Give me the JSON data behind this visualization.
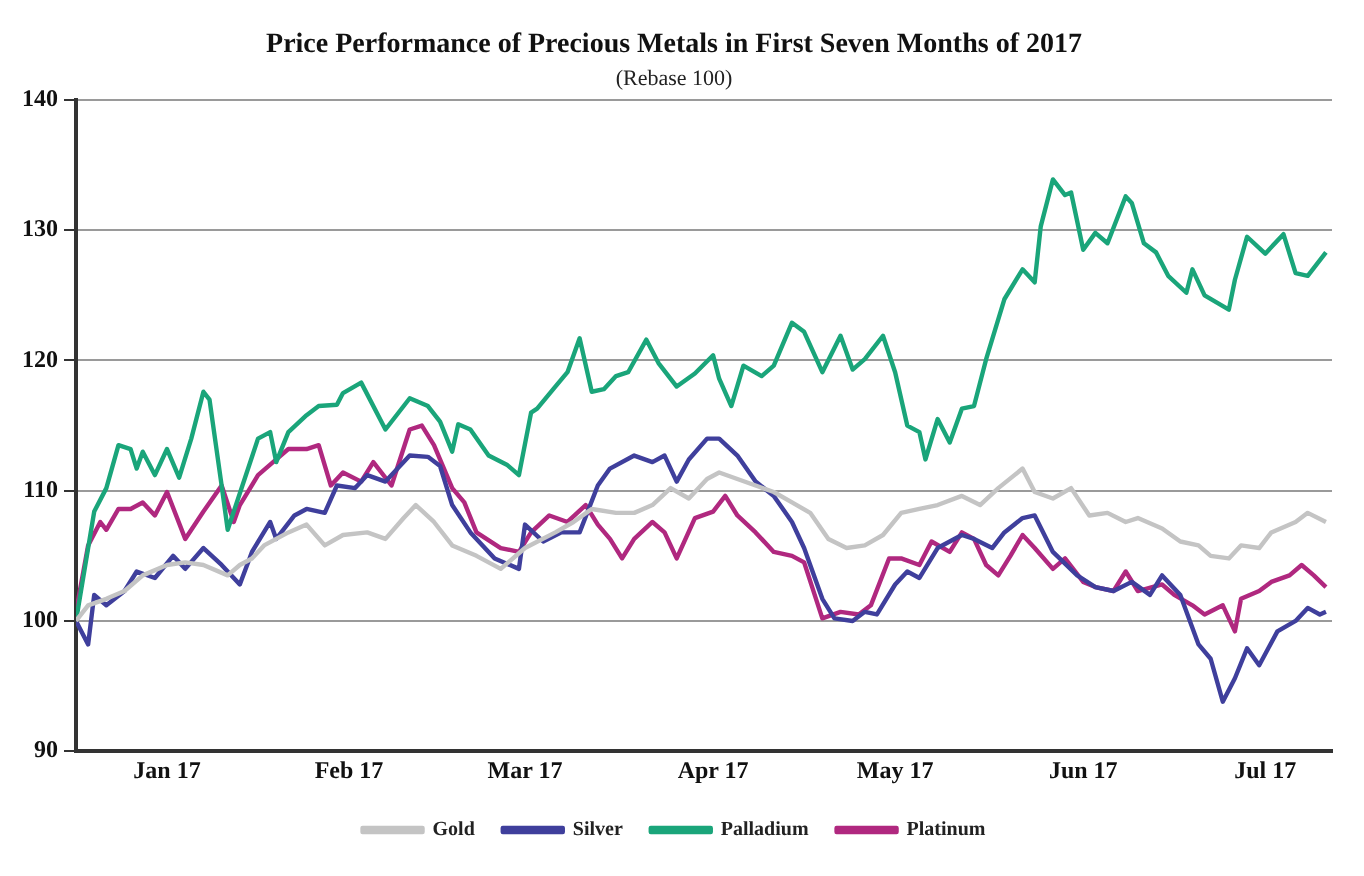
{
  "chart_data": {
    "type": "line",
    "title": "Price Performance of Precious Metals in First Seven Months of 2017",
    "subtitle": "(Rebase 100)",
    "xlim": [
      "2017-01-01",
      "2017-07-27"
    ],
    "xticks": [
      {
        "value": "2017-01-16",
        "label": "Jan 17"
      },
      {
        "value": "2017-02-15",
        "label": "Feb 17"
      },
      {
        "value": "2017-03-16",
        "label": "Mar 17"
      },
      {
        "value": "2017-04-16",
        "label": "Apr 17"
      },
      {
        "value": "2017-05-16",
        "label": "May 17"
      },
      {
        "value": "2017-06-16",
        "label": "Jun 17"
      },
      {
        "value": "2017-07-16",
        "label": "Jul 17"
      }
    ],
    "ylim": [
      90,
      140
    ],
    "yticks": [
      90,
      100,
      110,
      120,
      130,
      140
    ],
    "grid": "y",
    "legend": "bottom",
    "marker": "none",
    "line_style": "solid",
    "series": [
      {
        "name": "Gold",
        "color": "#c4c4c4",
        "x": [
          "2017-01-01",
          "2017-01-03",
          "2017-01-06",
          "2017-01-09",
          "2017-01-12",
          "2017-01-16",
          "2017-01-19",
          "2017-01-22",
          "2017-01-26",
          "2017-01-28",
          "2017-01-30",
          "2017-02-01",
          "2017-02-05",
          "2017-02-08",
          "2017-02-11",
          "2017-02-14",
          "2017-02-18",
          "2017-02-21",
          "2017-02-24",
          "2017-02-26",
          "2017-03-01",
          "2017-03-04",
          "2017-03-08",
          "2017-03-12",
          "2017-03-16",
          "2017-03-21",
          "2017-03-24",
          "2017-03-27",
          "2017-03-31",
          "2017-04-03",
          "2017-04-06",
          "2017-04-09",
          "2017-04-12",
          "2017-04-15",
          "2017-04-17",
          "2017-04-20",
          "2017-04-23",
          "2017-04-26",
          "2017-04-29",
          "2017-05-02",
          "2017-05-05",
          "2017-05-08",
          "2017-05-11",
          "2017-05-14",
          "2017-05-17",
          "2017-05-20",
          "2017-05-23",
          "2017-05-27",
          "2017-05-30",
          "2017-06-02",
          "2017-06-06",
          "2017-06-08",
          "2017-06-11",
          "2017-06-14",
          "2017-06-17",
          "2017-06-20",
          "2017-06-23",
          "2017-06-25",
          "2017-06-29",
          "2017-07-02",
          "2017-07-05",
          "2017-07-07",
          "2017-07-10",
          "2017-07-12",
          "2017-07-15",
          "2017-07-17",
          "2017-07-21",
          "2017-07-23",
          "2017-07-26"
        ],
        "values": [
          100,
          101.2,
          101.7,
          102.3,
          103.5,
          104.3,
          104.5,
          104.3,
          103.5,
          104.3,
          104.8,
          105.8,
          106.8,
          107.4,
          105.8,
          106.6,
          106.8,
          106.3,
          107.9,
          108.9,
          107.6,
          105.8,
          105,
          104,
          105.6,
          106.8,
          107.6,
          108.6,
          108.3,
          108.3,
          108.9,
          110.2,
          109.4,
          110.9,
          111.4,
          110.9,
          110.4,
          109.9,
          109.1,
          108.3,
          106.3,
          105.6,
          105.8,
          106.6,
          108.3,
          108.6,
          108.9,
          109.6,
          108.9,
          110.2,
          111.7,
          109.9,
          109.4,
          110.2,
          108.1,
          108.3,
          107.6,
          107.9,
          107.1,
          106.1,
          105.8,
          105,
          104.8,
          105.8,
          105.6,
          106.8,
          107.6,
          108.3,
          107.6
        ]
      },
      {
        "name": "Silver",
        "color": "#3f3f9c",
        "x": [
          "2017-01-01",
          "2017-01-03",
          "2017-01-04",
          "2017-01-06",
          "2017-01-09",
          "2017-01-11",
          "2017-01-14",
          "2017-01-17",
          "2017-01-19",
          "2017-01-22",
          "2017-01-25",
          "2017-01-28",
          "2017-01-30",
          "2017-02-02",
          "2017-02-03",
          "2017-02-06",
          "2017-02-08",
          "2017-02-11",
          "2017-02-13",
          "2017-02-16",
          "2017-02-18",
          "2017-02-21",
          "2017-02-25",
          "2017-02-28",
          "2017-03-02",
          "2017-03-04",
          "2017-03-07",
          "2017-03-11",
          "2017-03-15",
          "2017-03-16",
          "2017-03-19",
          "2017-03-22",
          "2017-03-25",
          "2017-03-28",
          "2017-03-30",
          "2017-04-03",
          "2017-04-06",
          "2017-04-08",
          "2017-04-10",
          "2017-04-12",
          "2017-04-15",
          "2017-04-17",
          "2017-04-20",
          "2017-04-23",
          "2017-04-26",
          "2017-04-29",
          "2017-05-01",
          "2017-05-04",
          "2017-05-06",
          "2017-05-09",
          "2017-05-11",
          "2017-05-13",
          "2017-05-16",
          "2017-05-18",
          "2017-05-20",
          "2017-05-23",
          "2017-05-27",
          "2017-05-29",
          "2017-06-01",
          "2017-06-03",
          "2017-06-06",
          "2017-06-08",
          "2017-06-11",
          "2017-06-15",
          "2017-06-18",
          "2017-06-21",
          "2017-06-24",
          "2017-06-27",
          "2017-06-29",
          "2017-07-02",
          "2017-07-05",
          "2017-07-07",
          "2017-07-09",
          "2017-07-11",
          "2017-07-13",
          "2017-07-15",
          "2017-07-18",
          "2017-07-21",
          "2017-07-23",
          "2017-07-25",
          "2017-07-26"
        ],
        "values": [
          100,
          98.2,
          102,
          101.2,
          102.3,
          103.8,
          103.3,
          105,
          104,
          105.6,
          104.3,
          102.8,
          105.3,
          107.6,
          106.3,
          108.1,
          108.6,
          108.3,
          110.4,
          110.2,
          111.2,
          110.7,
          112.7,
          112.6,
          111.9,
          108.9,
          106.8,
          104.8,
          104,
          107.4,
          106.1,
          106.8,
          106.8,
          110.4,
          111.7,
          112.7,
          112.2,
          112.7,
          110.7,
          112.4,
          114,
          114,
          112.7,
          110.7,
          109.6,
          107.6,
          105.6,
          101.7,
          100.2,
          100,
          100.7,
          100.5,
          102.8,
          103.8,
          103.3,
          105.6,
          106.6,
          106.3,
          105.6,
          106.8,
          107.9,
          108.1,
          105.3,
          103.5,
          102.6,
          102.3,
          103,
          102,
          103.5,
          102,
          98.2,
          97.1,
          93.8,
          95.6,
          97.9,
          96.6,
          99.2,
          100,
          101,
          100.5,
          100.7
        ]
      },
      {
        "name": "Palladium",
        "color": "#1aa57a",
        "x": [
          "2017-01-01",
          "2017-01-04",
          "2017-01-06",
          "2017-01-08",
          "2017-01-10",
          "2017-01-11",
          "2017-01-12",
          "2017-01-14",
          "2017-01-16",
          "2017-01-18",
          "2017-01-20",
          "2017-01-22",
          "2017-01-23",
          "2017-01-25",
          "2017-01-26",
          "2017-01-27",
          "2017-01-31",
          "2017-02-02",
          "2017-02-03",
          "2017-02-05",
          "2017-02-08",
          "2017-02-10",
          "2017-02-13",
          "2017-02-14",
          "2017-02-17",
          "2017-02-21",
          "2017-02-25",
          "2017-02-28",
          "2017-03-02",
          "2017-03-04",
          "2017-03-05",
          "2017-03-07",
          "2017-03-10",
          "2017-03-13",
          "2017-03-15",
          "2017-03-17",
          "2017-03-18",
          "2017-03-21",
          "2017-03-23",
          "2017-03-25",
          "2017-03-27",
          "2017-03-29",
          "2017-03-31",
          "2017-04-02",
          "2017-04-05",
          "2017-04-07",
          "2017-04-10",
          "2017-04-13",
          "2017-04-16",
          "2017-04-17",
          "2017-04-19",
          "2017-04-21",
          "2017-04-24",
          "2017-04-26",
          "2017-04-29",
          "2017-05-01",
          "2017-05-04",
          "2017-05-07",
          "2017-05-09",
          "2017-05-11",
          "2017-05-14",
          "2017-05-16",
          "2017-05-18",
          "2017-05-20",
          "2017-05-21",
          "2017-05-23",
          "2017-05-25",
          "2017-05-27",
          "2017-05-29",
          "2017-05-31",
          "2017-06-03",
          "2017-06-06",
          "2017-06-08",
          "2017-06-09",
          "2017-06-11",
          "2017-06-13",
          "2017-06-14",
          "2017-06-16",
          "2017-06-18",
          "2017-06-20",
          "2017-06-23",
          "2017-06-24",
          "2017-06-26",
          "2017-06-28",
          "2017-06-30",
          "2017-07-03",
          "2017-07-04",
          "2017-07-06",
          "2017-07-10",
          "2017-07-11",
          "2017-07-13",
          "2017-07-16",
          "2017-07-19",
          "2017-07-21",
          "2017-07-23",
          "2017-07-26"
        ],
        "values": [
          100,
          108.4,
          110.2,
          113.5,
          113.2,
          111.7,
          113,
          111.2,
          113.2,
          111,
          114,
          117.6,
          117,
          110.4,
          107,
          108.4,
          114,
          114.5,
          112.2,
          114.5,
          115.8,
          116.5,
          116.6,
          117.5,
          118.3,
          114.7,
          117.1,
          116.5,
          115.3,
          113,
          115.1,
          114.7,
          112.7,
          112,
          111.2,
          116,
          116.3,
          118,
          119.1,
          121.7,
          117.6,
          117.8,
          118.8,
          119.1,
          121.6,
          119.8,
          118,
          119,
          120.4,
          118.6,
          116.5,
          119.6,
          118.8,
          119.6,
          122.9,
          122.2,
          119.1,
          121.9,
          119.3,
          120.1,
          121.9,
          119.1,
          115,
          114.5,
          112.4,
          115.5,
          113.7,
          116.3,
          116.5,
          120.1,
          124.7,
          127,
          126,
          130.3,
          133.9,
          132.7,
          132.9,
          128.5,
          129.8,
          129,
          132.6,
          132.1,
          129,
          128.3,
          126.5,
          125.2,
          127,
          125,
          123.9,
          126.2,
          129.5,
          128.2,
          129.7,
          126.7,
          126.5,
          128.3
        ]
      },
      {
        "name": "Platinum",
        "color": "#b0287f",
        "x": [
          "2017-01-01",
          "2017-01-03",
          "2017-01-05",
          "2017-01-06",
          "2017-01-08",
          "2017-01-10",
          "2017-01-12",
          "2017-01-14",
          "2017-01-16",
          "2017-01-19",
          "2017-01-22",
          "2017-01-25",
          "2017-01-27",
          "2017-01-28",
          "2017-01-31",
          "2017-02-02",
          "2017-02-05",
          "2017-02-08",
          "2017-02-10",
          "2017-02-12",
          "2017-02-14",
          "2017-02-17",
          "2017-02-19",
          "2017-02-22",
          "2017-02-25",
          "2017-02-27",
          "2017-03-01",
          "2017-03-04",
          "2017-03-06",
          "2017-03-08",
          "2017-03-12",
          "2017-03-15",
          "2017-03-17",
          "2017-03-20",
          "2017-03-23",
          "2017-03-26",
          "2017-03-28",
          "2017-03-30",
          "2017-04-01",
          "2017-04-03",
          "2017-04-06",
          "2017-04-08",
          "2017-04-10",
          "2017-04-13",
          "2017-04-16",
          "2017-04-18",
          "2017-04-20",
          "2017-04-23",
          "2017-04-26",
          "2017-04-29",
          "2017-05-01",
          "2017-05-04",
          "2017-05-07",
          "2017-05-10",
          "2017-05-12",
          "2017-05-15",
          "2017-05-17",
          "2017-05-20",
          "2017-05-22",
          "2017-05-25",
          "2017-05-27",
          "2017-05-29",
          "2017-05-31",
          "2017-06-02",
          "2017-06-04",
          "2017-06-06",
          "2017-06-08",
          "2017-06-11",
          "2017-06-13",
          "2017-06-16",
          "2017-06-18",
          "2017-06-21",
          "2017-06-23",
          "2017-06-25",
          "2017-06-29",
          "2017-07-01",
          "2017-07-04",
          "2017-07-06",
          "2017-07-09",
          "2017-07-11",
          "2017-07-12",
          "2017-07-15",
          "2017-07-17",
          "2017-07-20",
          "2017-07-22",
          "2017-07-24",
          "2017-07-26"
        ],
        "values": [
          100.7,
          105.8,
          107.6,
          107,
          108.6,
          108.6,
          109.1,
          108.1,
          109.9,
          106.3,
          108.4,
          110.4,
          107.6,
          108.9,
          111.2,
          112,
          113.2,
          113.2,
          113.5,
          110.4,
          111.4,
          110.7,
          112.2,
          110.4,
          114.7,
          115,
          113.5,
          110.2,
          109.1,
          106.8,
          105.6,
          105.3,
          106.8,
          108.1,
          107.6,
          108.9,
          107.4,
          106.3,
          104.8,
          106.3,
          107.6,
          106.8,
          104.8,
          107.9,
          108.4,
          109.6,
          108.1,
          106.8,
          105.3,
          105,
          104.5,
          100.2,
          100.7,
          100.5,
          101.2,
          104.8,
          104.8,
          104.3,
          106.1,
          105.3,
          106.8,
          106.3,
          104.3,
          103.5,
          105,
          106.6,
          105.6,
          104,
          104.8,
          103,
          102.6,
          102.3,
          103.8,
          102.3,
          102.8,
          102,
          101.2,
          100.5,
          101.2,
          99.2,
          101.7,
          102.3,
          103,
          103.5,
          104.3,
          103.5,
          102.6
        ]
      }
    ]
  }
}
